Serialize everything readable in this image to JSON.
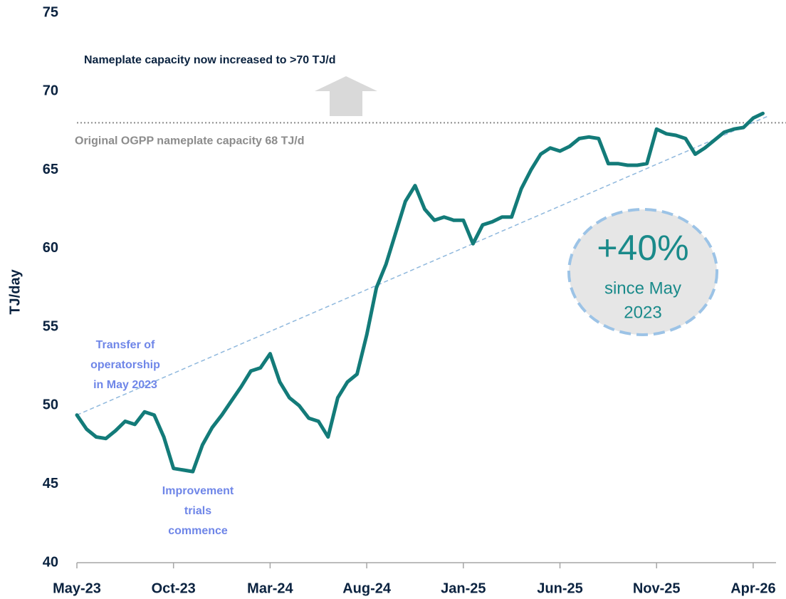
{
  "chart_data": {
    "type": "line",
    "y_label": "TJ/day",
    "categories": [
      "May-23",
      null,
      null,
      null,
      null,
      null,
      null,
      null,
      null,
      null,
      "Oct-23",
      null,
      null,
      null,
      null,
      null,
      null,
      null,
      null,
      null,
      "Mar-24",
      null,
      null,
      null,
      null,
      null,
      null,
      null,
      null,
      null,
      "Aug-24",
      null,
      null,
      null,
      null,
      null,
      null,
      null,
      null,
      null,
      "Jan-25",
      null,
      null,
      null,
      null,
      null,
      null,
      null,
      null,
      null,
      "Jun-25",
      null,
      null,
      null,
      null,
      null,
      null,
      null,
      null,
      null,
      "Nov-25",
      null,
      null,
      null,
      null,
      null,
      null,
      null,
      null,
      null,
      "Apr-26",
      null
    ],
    "series": [
      {
        "name": "Production",
        "color": "#137b79",
        "values": [
          49.4,
          48.5,
          48.0,
          47.9,
          48.4,
          49.0,
          48.8,
          49.6,
          49.4,
          48.0,
          46.0,
          45.9,
          45.8,
          47.5,
          48.6,
          49.4,
          50.3,
          51.2,
          52.2,
          52.4,
          53.3,
          51.5,
          50.5,
          50.0,
          49.2,
          49.0,
          48.0,
          50.5,
          51.5,
          52.0,
          54.5,
          57.5,
          59.0,
          61.0,
          63.0,
          64.0,
          62.5,
          61.8,
          62.0,
          61.8,
          61.8,
          60.3,
          61.5,
          61.7,
          62.0,
          62.0,
          63.8,
          65.0,
          66.0,
          66.4,
          66.2,
          66.5,
          67.0,
          67.1,
          67.0,
          65.4,
          65.4,
          65.3,
          65.3,
          65.4,
          67.6,
          67.3,
          67.2,
          67.0,
          66.0,
          66.4,
          66.9,
          67.4,
          67.6,
          67.7,
          68.3,
          68.6
        ]
      }
    ],
    "trendline": {
      "color": "#8fb8dd",
      "values": [
        49.4,
        68.4
      ]
    },
    "reference_line": {
      "value": 68,
      "label": "Original OGPP nameplate capacity 68 TJ/d",
      "color": "#8c8c8c"
    },
    "ylim": [
      40,
      75
    ],
    "yticks": [
      40,
      45,
      50,
      55,
      60,
      65,
      70,
      75
    ],
    "annotations": [
      {
        "lines": [
          "Nameplate capacity now increased to >70 TJ/d"
        ]
      },
      {
        "lines": [
          "Transfer of",
          "operatorship",
          "in May 2023"
        ]
      },
      {
        "lines": [
          "Improvement",
          "trials",
          "commence"
        ]
      }
    ],
    "badge": {
      "headline": "+40%",
      "lines": [
        "since May",
        "2023"
      ]
    }
  }
}
